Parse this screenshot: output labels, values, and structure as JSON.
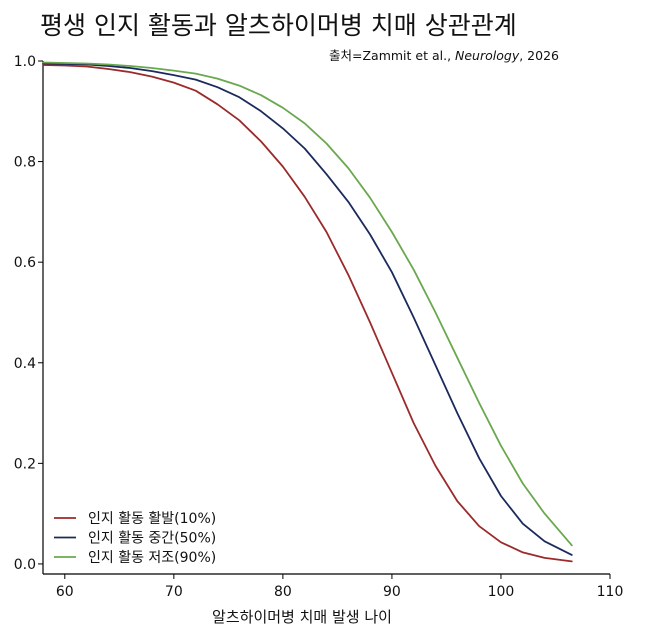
{
  "chart_data": {
    "type": "line",
    "title": "평생 인지 활동과 알츠하이머병 치매 상관관계",
    "source": {
      "prefix": "출처=Zammit et al., ",
      "journal": "Neurology",
      "suffix": ", 2026"
    },
    "xlabel": "알츠하이머병 치매 발생 나이",
    "ylabel": "",
    "xlim": [
      58,
      110
    ],
    "ylim": [
      -0.02,
      1.0
    ],
    "xticks": [
      "60",
      "70",
      "80",
      "90",
      "100",
      "110"
    ],
    "yticks": [
      "0.0",
      "0.2",
      "0.4",
      "0.6",
      "0.8",
      "1.0"
    ],
    "grid": false,
    "legend_position": "bottom-left",
    "series": [
      {
        "name": "인지 활동 활발(10%)",
        "color": "#9b2a2a",
        "x": [
          58,
          60,
          62,
          64,
          66,
          68,
          70,
          72,
          74,
          76,
          78,
          80,
          82,
          84,
          86,
          88,
          90,
          92,
          94,
          96,
          98,
          100,
          102,
          104,
          106.5
        ],
        "y": [
          0.992,
          0.991,
          0.989,
          0.984,
          0.978,
          0.969,
          0.957,
          0.941,
          0.914,
          0.882,
          0.84,
          0.79,
          0.73,
          0.66,
          0.575,
          0.48,
          0.38,
          0.28,
          0.195,
          0.125,
          0.075,
          0.043,
          0.023,
          0.012,
          0.005
        ]
      },
      {
        "name": "인지 활동 중간(50%)",
        "color": "#1b2a5c",
        "x": [
          58,
          60,
          62,
          64,
          66,
          68,
          70,
          72,
          74,
          76,
          78,
          80,
          82,
          84,
          86,
          88,
          90,
          92,
          94,
          96,
          98,
          100,
          102,
          104,
          106.5
        ],
        "y": [
          0.995,
          0.994,
          0.993,
          0.99,
          0.986,
          0.98,
          0.972,
          0.963,
          0.948,
          0.928,
          0.9,
          0.866,
          0.826,
          0.775,
          0.72,
          0.655,
          0.58,
          0.49,
          0.395,
          0.3,
          0.21,
          0.135,
          0.08,
          0.045,
          0.018
        ]
      },
      {
        "name": "인지 활동 저조(90%)",
        "color": "#6aa84f",
        "x": [
          58,
          60,
          62,
          64,
          66,
          68,
          70,
          72,
          74,
          76,
          78,
          80,
          82,
          84,
          86,
          88,
          90,
          92,
          94,
          96,
          98,
          100,
          102,
          104,
          106.5
        ],
        "y": [
          0.997,
          0.996,
          0.995,
          0.993,
          0.99,
          0.986,
          0.981,
          0.975,
          0.965,
          0.951,
          0.932,
          0.907,
          0.876,
          0.836,
          0.787,
          0.728,
          0.66,
          0.585,
          0.5,
          0.41,
          0.32,
          0.235,
          0.16,
          0.1,
          0.037
        ]
      }
    ]
  }
}
